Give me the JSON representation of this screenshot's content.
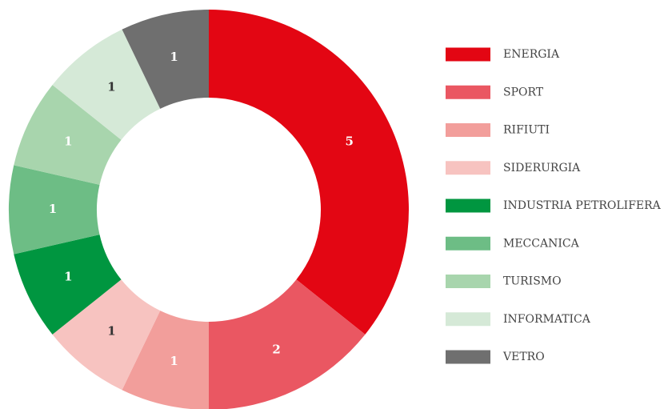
{
  "chart_data": {
    "type": "donut",
    "categories": [
      "ENERGIA",
      "SPORT",
      "RIFIUTI",
      "SIDERURGIA",
      "INDUSTRIA PETROLIFERA",
      "MECCANICA",
      "TURISMO",
      "INFORMATICA",
      "VETRO"
    ],
    "values": [
      5,
      2,
      1,
      1,
      1,
      1,
      1,
      1,
      1
    ],
    "colors": [
      "#e30613",
      "#ea5762",
      "#f29e9b",
      "#f7c3c0",
      "#009640",
      "#6dbd85",
      "#a8d5ad",
      "#d5e9d7",
      "#6f6f6f"
    ],
    "label_colors": [
      "#ffffff",
      "#ffffff",
      "#ffffff",
      "#333333",
      "#ffffff",
      "#ffffff",
      "#ffffff",
      "#333333",
      "#ffffff"
    ],
    "legend": "right"
  }
}
